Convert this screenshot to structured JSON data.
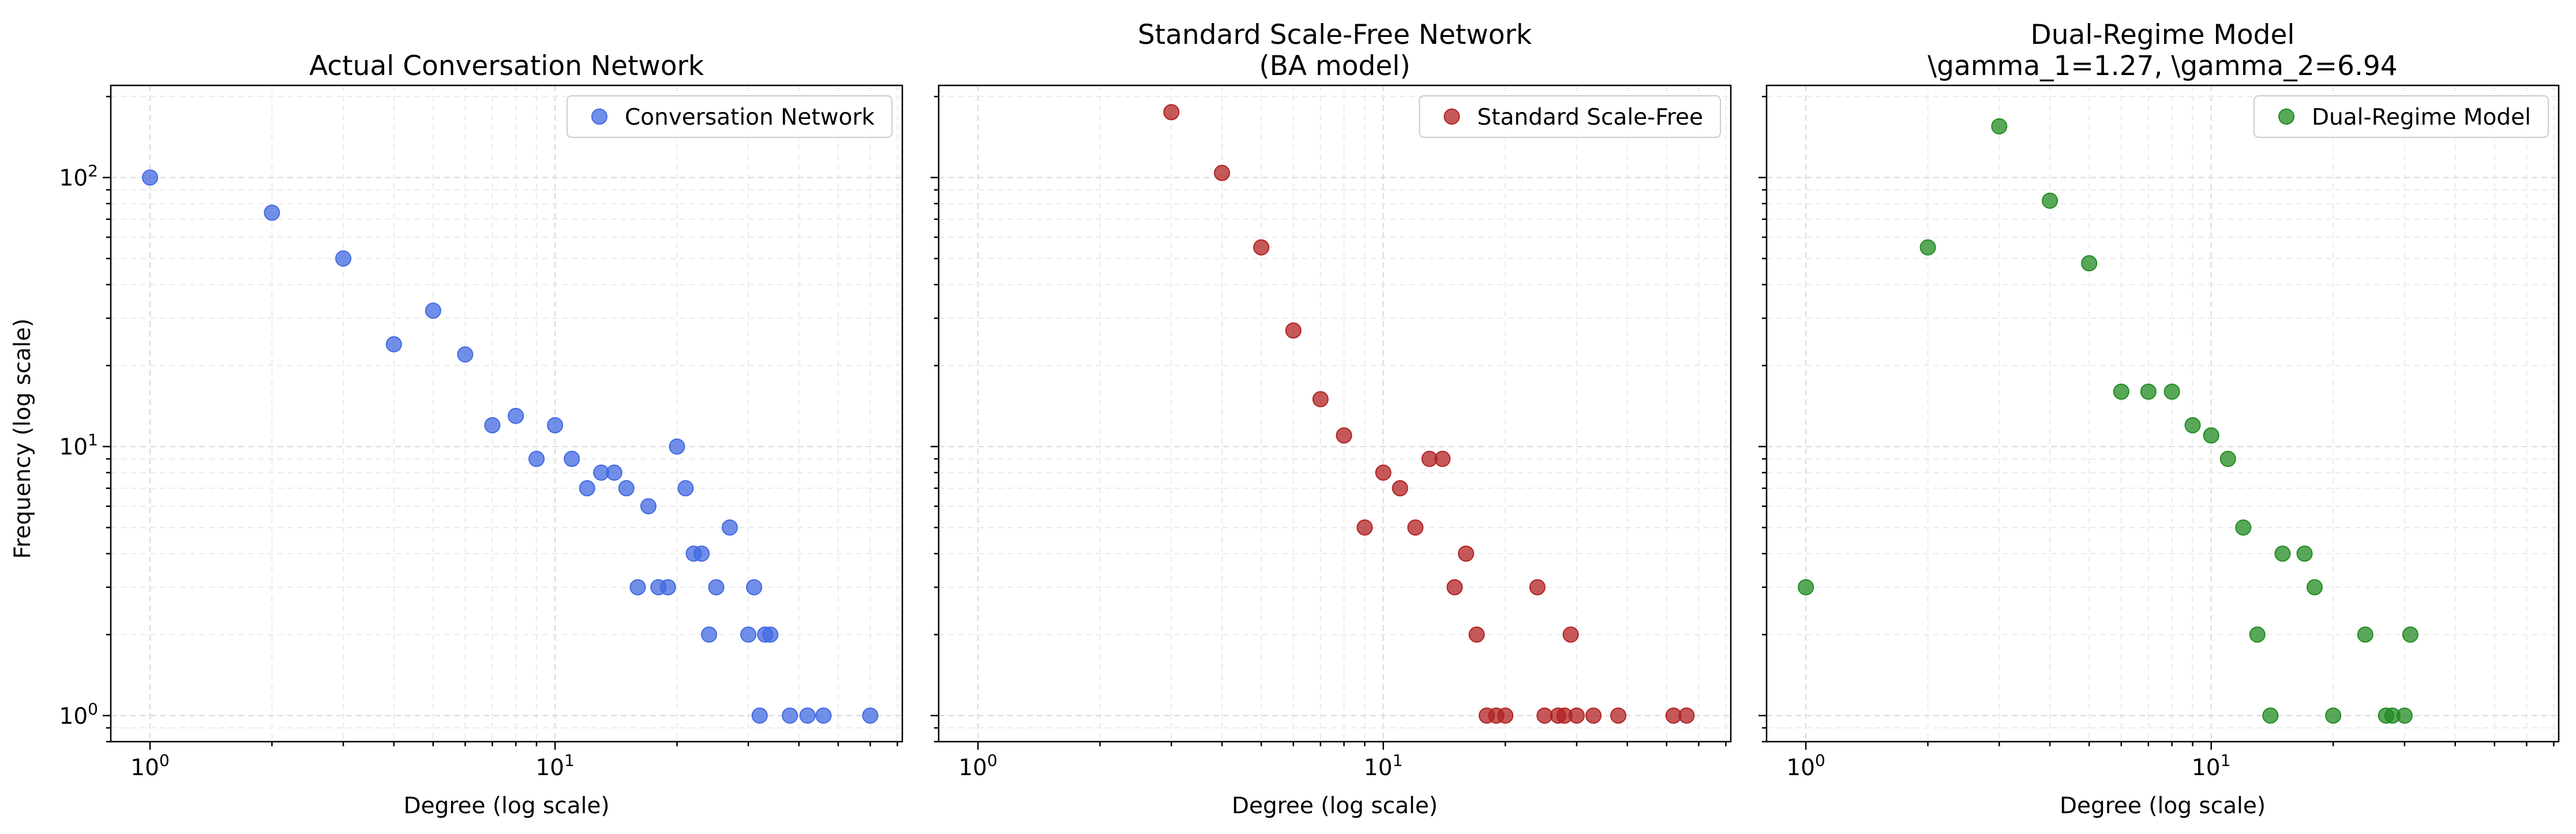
{
  "figure": {
    "ylabel": "Frequency (log scale)"
  },
  "chart_data": [
    {
      "type": "scatter",
      "title": "Actual Conversation Network",
      "xlabel": "Degree (log scale)",
      "ylabel": "Frequency (log scale)",
      "x_scale": "log",
      "y_scale": "log",
      "xlim": [
        0.8,
        72
      ],
      "ylim": [
        0.8,
        220
      ],
      "grid": true,
      "legend_position": "top-right",
      "x_tick_labels": [
        "10^0",
        "10^1"
      ],
      "y_tick_labels": [
        "10^0",
        "10^1",
        "10^2"
      ],
      "series": [
        {
          "name": "Conversation Network",
          "color": "#4169e1",
          "points": [
            [
              1,
              100
            ],
            [
              2,
              74
            ],
            [
              3,
              50
            ],
            [
              4,
              24
            ],
            [
              5,
              32
            ],
            [
              6,
              22
            ],
            [
              7,
              12
            ],
            [
              8,
              13
            ],
            [
              9,
              9
            ],
            [
              10,
              12
            ],
            [
              11,
              9
            ],
            [
              12,
              7
            ],
            [
              13,
              8
            ],
            [
              14,
              8
            ],
            [
              15,
              7
            ],
            [
              16,
              3
            ],
            [
              17,
              6
            ],
            [
              18,
              3
            ],
            [
              19,
              3
            ],
            [
              20,
              10
            ],
            [
              21,
              7
            ],
            [
              22,
              4
            ],
            [
              23,
              4
            ],
            [
              24,
              2
            ],
            [
              25,
              3
            ],
            [
              27,
              5
            ],
            [
              30,
              2
            ],
            [
              31,
              3
            ],
            [
              32,
              1
            ],
            [
              33,
              2
            ],
            [
              34,
              2
            ],
            [
              38,
              1
            ],
            [
              42,
              1
            ],
            [
              46,
              1
            ],
            [
              60,
              1
            ]
          ]
        }
      ]
    },
    {
      "type": "scatter",
      "title": "Standard Scale-Free Network\n(BA model)",
      "xlabel": "Degree (log scale)",
      "x_scale": "log",
      "y_scale": "log",
      "xlim": [
        0.8,
        72
      ],
      "ylim": [
        0.8,
        220
      ],
      "grid": true,
      "legend_position": "top-right",
      "x_tick_labels": [
        "10^0",
        "10^1"
      ],
      "series": [
        {
          "name": "Standard Scale-Free",
          "color": "#b22222",
          "points": [
            [
              3,
              175
            ],
            [
              4,
              104
            ],
            [
              5,
              55
            ],
            [
              6,
              27
            ],
            [
              7,
              15
            ],
            [
              8,
              11
            ],
            [
              9,
              5
            ],
            [
              10,
              8
            ],
            [
              11,
              7
            ],
            [
              12,
              5
            ],
            [
              13,
              9
            ],
            [
              14,
              9
            ],
            [
              15,
              3
            ],
            [
              16,
              4
            ],
            [
              17,
              2
            ],
            [
              18,
              1
            ],
            [
              19,
              1
            ],
            [
              20,
              1
            ],
            [
              24,
              3
            ],
            [
              25,
              1
            ],
            [
              27,
              1
            ],
            [
              28,
              1
            ],
            [
              29,
              2
            ],
            [
              30,
              1
            ],
            [
              33,
              1
            ],
            [
              38,
              1
            ],
            [
              52,
              1
            ],
            [
              56,
              1
            ]
          ]
        }
      ]
    },
    {
      "type": "scatter",
      "title": "Dual-Regime Model\n\\gamma_1=1.27, \\gamma_2=6.94",
      "xlabel": "Degree (log scale)",
      "x_scale": "log",
      "y_scale": "log",
      "xlim": [
        0.8,
        72
      ],
      "ylim": [
        0.8,
        220
      ],
      "grid": true,
      "legend_position": "top-right",
      "x_tick_labels": [
        "10^0",
        "10^1"
      ],
      "series": [
        {
          "name": "Dual-Regime Model",
          "color": "#228b22",
          "points": [
            [
              1,
              3
            ],
            [
              2,
              55
            ],
            [
              3,
              155
            ],
            [
              4,
              82
            ],
            [
              5,
              48
            ],
            [
              6,
              16
            ],
            [
              7,
              16
            ],
            [
              8,
              16
            ],
            [
              9,
              12
            ],
            [
              10,
              11
            ],
            [
              11,
              9
            ],
            [
              12,
              5
            ],
            [
              13,
              2
            ],
            [
              14,
              1
            ],
            [
              15,
              4
            ],
            [
              17,
              4
            ],
            [
              18,
              3
            ],
            [
              20,
              1
            ],
            [
              24,
              2
            ],
            [
              27,
              1
            ],
            [
              28,
              1
            ],
            [
              30,
              1
            ],
            [
              31,
              2
            ]
          ]
        }
      ]
    }
  ]
}
